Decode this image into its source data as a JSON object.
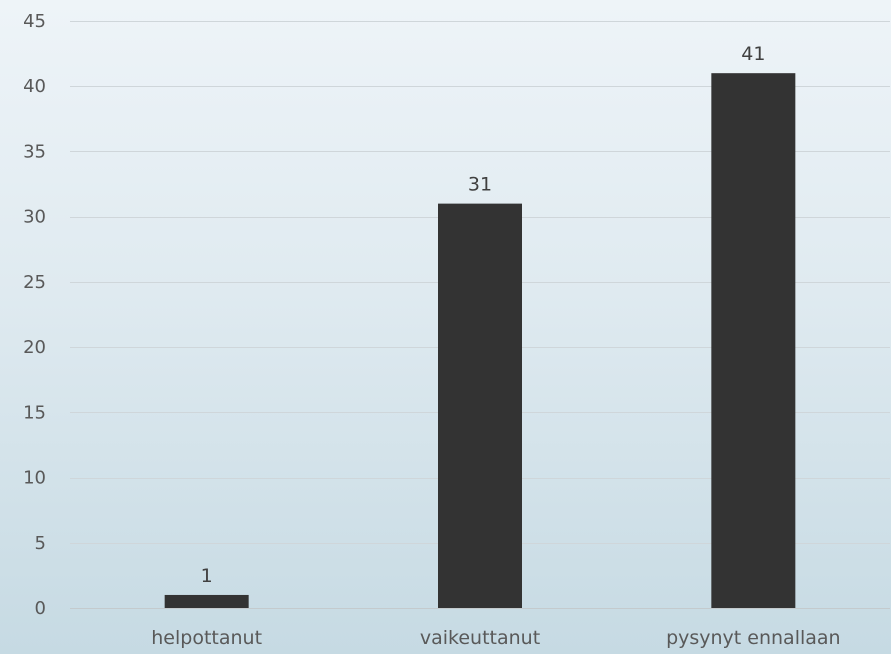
{
  "chart_data": {
    "type": "bar",
    "title": "",
    "xlabel": "",
    "ylabel": "",
    "categories": [
      "helpottanut",
      "vaikeuttanut",
      "pysynyt ennallaan"
    ],
    "values": [
      1,
      31,
      41
    ],
    "data_labels": [
      "1",
      "31",
      "41"
    ],
    "ylim": [
      0,
      45
    ],
    "yticks": [
      0,
      5,
      10,
      15,
      20,
      25,
      30,
      35,
      40,
      45
    ],
    "grid": true,
    "legend": "none",
    "colors": {
      "bar": "#333333",
      "grid": "#cfd6da",
      "text": "#595959",
      "background_top": "#eef4f8",
      "background_bottom": "#c6dae3"
    }
  }
}
